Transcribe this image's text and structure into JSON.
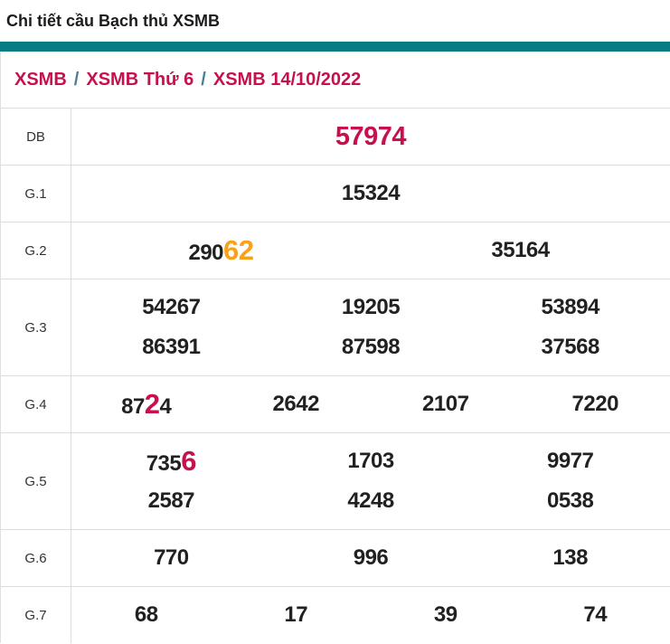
{
  "header": {
    "title": "Chi tiết cầu Bạch thủ XSMB"
  },
  "breadcrumb": {
    "items": [
      "XSMB",
      "XSMB Thứ 6",
      "XSMB 14/10/2022"
    ],
    "separator": "/"
  },
  "colors": {
    "accent_teal": "#077c85",
    "crimson": "#c8104e",
    "orange": "#f9a11b",
    "number_text": "#212121",
    "divider": "#dddddd"
  },
  "table": {
    "rows": [
      {
        "label": "DB",
        "lines": [
          [
            [
              {
                "t": "57974",
                "style": "special"
              }
            ]
          ]
        ]
      },
      {
        "label": "G.1",
        "lines": [
          [
            [
              {
                "t": "15324",
                "style": "normal"
              }
            ]
          ]
        ]
      },
      {
        "label": "G.2",
        "lines": [
          [
            [
              {
                "t": "290",
                "style": "normal"
              },
              {
                "t": "62",
                "style": "orange"
              }
            ],
            [
              {
                "t": "35164",
                "style": "normal"
              }
            ]
          ]
        ]
      },
      {
        "label": "G.3",
        "lines": [
          [
            [
              {
                "t": "54267",
                "style": "normal"
              }
            ],
            [
              {
                "t": "19205",
                "style": "normal"
              }
            ],
            [
              {
                "t": "53894",
                "style": "normal"
              }
            ]
          ],
          [
            [
              {
                "t": "86391",
                "style": "normal"
              }
            ],
            [
              {
                "t": "87598",
                "style": "normal"
              }
            ],
            [
              {
                "t": "37568",
                "style": "normal"
              }
            ]
          ]
        ]
      },
      {
        "label": "G.4",
        "lines": [
          [
            [
              {
                "t": "87",
                "style": "normal"
              },
              {
                "t": "2",
                "style": "red"
              },
              {
                "t": "4",
                "style": "normal"
              }
            ],
            [
              {
                "t": "2642",
                "style": "normal"
              }
            ],
            [
              {
                "t": "2107",
                "style": "normal"
              }
            ],
            [
              {
                "t": "7220",
                "style": "normal"
              }
            ]
          ]
        ]
      },
      {
        "label": "G.5",
        "lines": [
          [
            [
              {
                "t": "735",
                "style": "normal"
              },
              {
                "t": "6",
                "style": "red"
              }
            ],
            [
              {
                "t": "1703",
                "style": "normal"
              }
            ],
            [
              {
                "t": "9977",
                "style": "normal"
              }
            ]
          ],
          [
            [
              {
                "t": "2587",
                "style": "normal"
              }
            ],
            [
              {
                "t": "4248",
                "style": "normal"
              }
            ],
            [
              {
                "t": "0538",
                "style": "normal"
              }
            ]
          ]
        ]
      },
      {
        "label": "G.6",
        "lines": [
          [
            [
              {
                "t": "770",
                "style": "normal"
              }
            ],
            [
              {
                "t": "996",
                "style": "normal"
              }
            ],
            [
              {
                "t": "138",
                "style": "normal"
              }
            ]
          ]
        ]
      },
      {
        "label": "G.7",
        "lines": [
          [
            [
              {
                "t": "68",
                "style": "normal"
              }
            ],
            [
              {
                "t": "17",
                "style": "normal"
              }
            ],
            [
              {
                "t": "39",
                "style": "normal"
              }
            ],
            [
              {
                "t": "74",
                "style": "normal"
              }
            ]
          ]
        ]
      }
    ]
  }
}
